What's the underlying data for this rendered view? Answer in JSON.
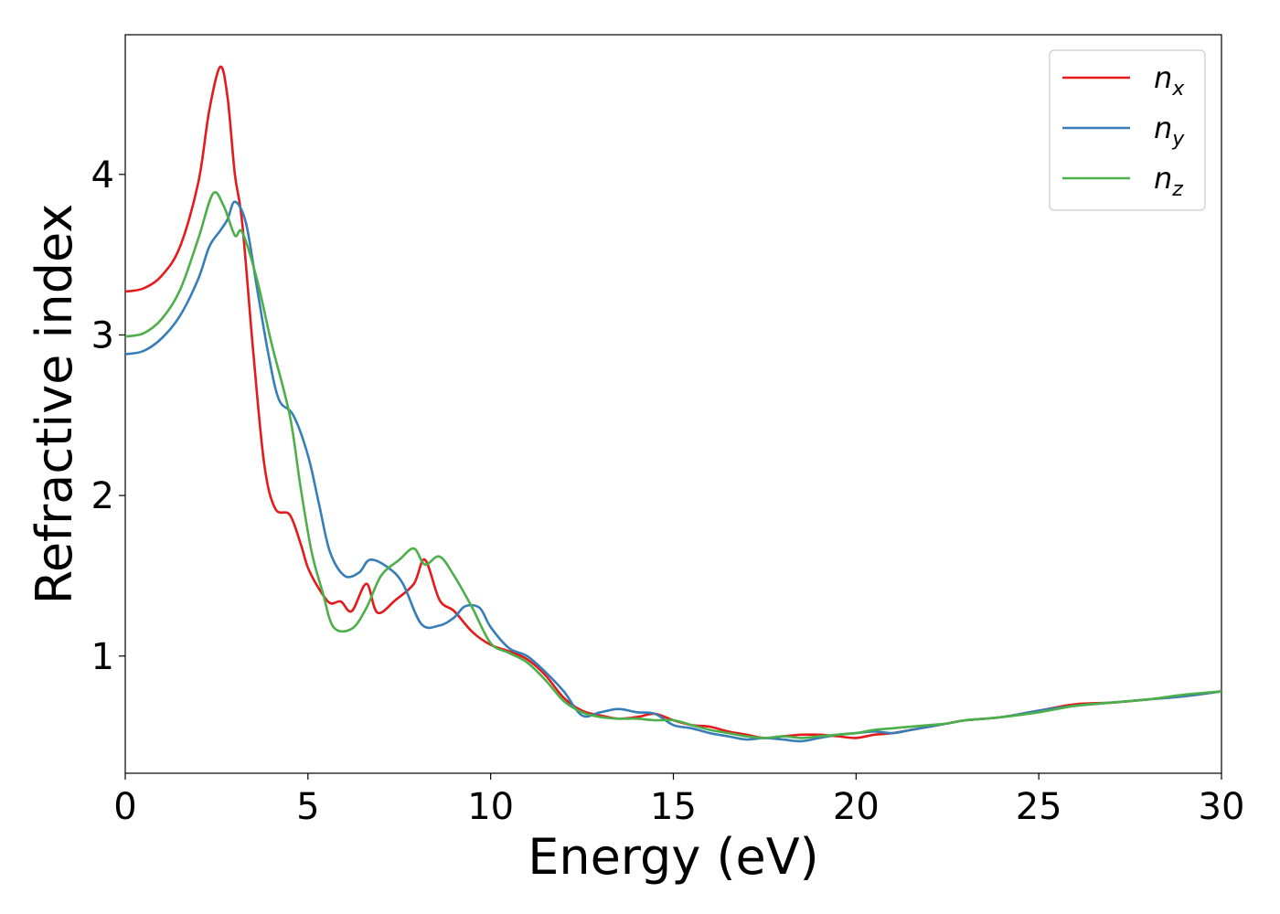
{
  "chart_data": {
    "type": "line",
    "title": "",
    "xlabel": "Energy (eV)",
    "ylabel": "Refractive index",
    "xlim": [
      0,
      30
    ],
    "ylim": [
      0.27,
      4.87
    ],
    "xticks": [
      0,
      5,
      10,
      15,
      20,
      25,
      30
    ],
    "yticks": [
      1,
      2,
      3,
      4
    ],
    "grid": false,
    "legend_position": "top-right",
    "series": [
      {
        "name": "n_x",
        "label_main": "n",
        "label_sub": "x",
        "color": "#e41a1c",
        "points": [
          [
            0,
            3.27
          ],
          [
            0.5,
            3.29
          ],
          [
            1,
            3.37
          ],
          [
            1.5,
            3.55
          ],
          [
            2,
            3.95
          ],
          [
            2.3,
            4.4
          ],
          [
            2.6,
            4.67
          ],
          [
            2.8,
            4.48
          ],
          [
            3.0,
            4.0
          ],
          [
            3.2,
            3.7
          ],
          [
            3.5,
            2.9
          ],
          [
            3.8,
            2.2
          ],
          [
            4.1,
            1.92
          ],
          [
            4.5,
            1.88
          ],
          [
            4.8,
            1.7
          ],
          [
            5.0,
            1.55
          ],
          [
            5.3,
            1.42
          ],
          [
            5.6,
            1.33
          ],
          [
            5.9,
            1.34
          ],
          [
            6.2,
            1.28
          ],
          [
            6.6,
            1.45
          ],
          [
            6.9,
            1.27
          ],
          [
            7.4,
            1.35
          ],
          [
            7.9,
            1.45
          ],
          [
            8.2,
            1.6
          ],
          [
            8.6,
            1.35
          ],
          [
            9.0,
            1.28
          ],
          [
            9.5,
            1.15
          ],
          [
            10,
            1.07
          ],
          [
            10.5,
            1.03
          ],
          [
            11,
            0.98
          ],
          [
            11.5,
            0.88
          ],
          [
            12,
            0.74
          ],
          [
            12.5,
            0.66
          ],
          [
            13,
            0.63
          ],
          [
            13.5,
            0.61
          ],
          [
            14,
            0.62
          ],
          [
            14.5,
            0.64
          ],
          [
            15,
            0.6
          ],
          [
            15.5,
            0.57
          ],
          [
            16,
            0.56
          ],
          [
            16.5,
            0.53
          ],
          [
            17,
            0.51
          ],
          [
            17.5,
            0.49
          ],
          [
            18,
            0.5
          ],
          [
            18.5,
            0.51
          ],
          [
            19,
            0.51
          ],
          [
            19.5,
            0.5
          ],
          [
            20,
            0.49
          ],
          [
            20.5,
            0.51
          ],
          [
            21,
            0.52
          ],
          [
            21.5,
            0.54
          ],
          [
            22,
            0.56
          ],
          [
            22.5,
            0.58
          ],
          [
            23,
            0.6
          ],
          [
            24,
            0.62
          ],
          [
            25,
            0.66
          ],
          [
            26,
            0.7
          ],
          [
            27,
            0.71
          ],
          [
            28,
            0.73
          ],
          [
            29,
            0.75
          ],
          [
            30,
            0.78
          ]
        ]
      },
      {
        "name": "n_y",
        "label_main": "n",
        "label_sub": "y",
        "color": "#377eb8",
        "points": [
          [
            0,
            2.88
          ],
          [
            0.5,
            2.9
          ],
          [
            1,
            2.98
          ],
          [
            1.5,
            3.12
          ],
          [
            2,
            3.35
          ],
          [
            2.3,
            3.55
          ],
          [
            2.6,
            3.65
          ],
          [
            2.8,
            3.72
          ],
          [
            3.0,
            3.83
          ],
          [
            3.3,
            3.7
          ],
          [
            3.6,
            3.3
          ],
          [
            3.9,
            2.9
          ],
          [
            4.2,
            2.6
          ],
          [
            4.6,
            2.5
          ],
          [
            5.0,
            2.25
          ],
          [
            5.3,
            1.95
          ],
          [
            5.6,
            1.65
          ],
          [
            6.0,
            1.5
          ],
          [
            6.4,
            1.52
          ],
          [
            6.7,
            1.6
          ],
          [
            7.2,
            1.55
          ],
          [
            7.6,
            1.45
          ],
          [
            8.1,
            1.2
          ],
          [
            8.6,
            1.19
          ],
          [
            9.0,
            1.24
          ],
          [
            9.3,
            1.31
          ],
          [
            9.7,
            1.3
          ],
          [
            10,
            1.18
          ],
          [
            10.5,
            1.05
          ],
          [
            11,
            1.0
          ],
          [
            11.5,
            0.9
          ],
          [
            12,
            0.78
          ],
          [
            12.5,
            0.63
          ],
          [
            13,
            0.65
          ],
          [
            13.5,
            0.67
          ],
          [
            14,
            0.65
          ],
          [
            14.5,
            0.64
          ],
          [
            15,
            0.57
          ],
          [
            15.5,
            0.55
          ],
          [
            16,
            0.52
          ],
          [
            16.5,
            0.5
          ],
          [
            17,
            0.48
          ],
          [
            17.5,
            0.49
          ],
          [
            18,
            0.48
          ],
          [
            18.5,
            0.47
          ],
          [
            19,
            0.49
          ],
          [
            19.5,
            0.51
          ],
          [
            20,
            0.52
          ],
          [
            20.5,
            0.53
          ],
          [
            21,
            0.52
          ],
          [
            21.5,
            0.54
          ],
          [
            22,
            0.56
          ],
          [
            22.5,
            0.58
          ],
          [
            23,
            0.6
          ],
          [
            24,
            0.62
          ],
          [
            25,
            0.66
          ],
          [
            26,
            0.69
          ],
          [
            27,
            0.71
          ],
          [
            28,
            0.73
          ],
          [
            29,
            0.75
          ],
          [
            30,
            0.78
          ]
        ]
      },
      {
        "name": "n_z",
        "label_main": "n",
        "label_sub": "z",
        "color": "#4daf4a",
        "points": [
          [
            0,
            2.99
          ],
          [
            0.5,
            3.01
          ],
          [
            1,
            3.1
          ],
          [
            1.5,
            3.28
          ],
          [
            2,
            3.6
          ],
          [
            2.4,
            3.88
          ],
          [
            2.7,
            3.8
          ],
          [
            3.0,
            3.62
          ],
          [
            3.2,
            3.64
          ],
          [
            3.6,
            3.35
          ],
          [
            4.0,
            2.95
          ],
          [
            4.5,
            2.5
          ],
          [
            4.8,
            2.05
          ],
          [
            5.1,
            1.65
          ],
          [
            5.4,
            1.4
          ],
          [
            5.7,
            1.18
          ],
          [
            6.2,
            1.17
          ],
          [
            6.6,
            1.3
          ],
          [
            7.0,
            1.5
          ],
          [
            7.5,
            1.6
          ],
          [
            7.9,
            1.67
          ],
          [
            8.2,
            1.57
          ],
          [
            8.6,
            1.62
          ],
          [
            9.0,
            1.5
          ],
          [
            9.5,
            1.3
          ],
          [
            10,
            1.08
          ],
          [
            10.5,
            1.02
          ],
          [
            11,
            0.96
          ],
          [
            11.5,
            0.85
          ],
          [
            12,
            0.72
          ],
          [
            12.5,
            0.65
          ],
          [
            13,
            0.62
          ],
          [
            13.5,
            0.61
          ],
          [
            14,
            0.61
          ],
          [
            14.5,
            0.6
          ],
          [
            15,
            0.6
          ],
          [
            15.5,
            0.57
          ],
          [
            16,
            0.54
          ],
          [
            16.5,
            0.52
          ],
          [
            17,
            0.5
          ],
          [
            17.5,
            0.49
          ],
          [
            18,
            0.5
          ],
          [
            18.5,
            0.49
          ],
          [
            19,
            0.5
          ],
          [
            19.5,
            0.51
          ],
          [
            20,
            0.52
          ],
          [
            20.5,
            0.54
          ],
          [
            21,
            0.55
          ],
          [
            21.5,
            0.56
          ],
          [
            22,
            0.57
          ],
          [
            22.5,
            0.58
          ],
          [
            23,
            0.6
          ],
          [
            24,
            0.62
          ],
          [
            25,
            0.65
          ],
          [
            26,
            0.69
          ],
          [
            27,
            0.71
          ],
          [
            28,
            0.73
          ],
          [
            29,
            0.76
          ],
          [
            30,
            0.78
          ]
        ]
      }
    ]
  }
}
